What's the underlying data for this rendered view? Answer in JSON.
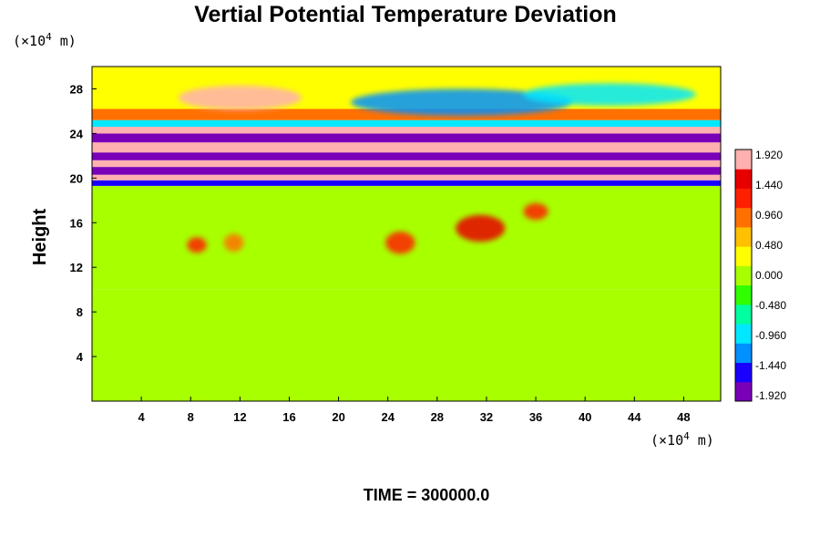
{
  "chart_data": {
    "type": "heatmap",
    "title": "Vertial Potential Temperature Deviation",
    "ylabel": "Height",
    "x_unit": {
      "prefix": "(×10",
      "exp": "4",
      "suffix": " m)"
    },
    "y_unit": {
      "prefix": "(×10",
      "exp": "4",
      "suffix": " m)"
    },
    "xlim": [
      0,
      51
    ],
    "ylim": [
      0,
      30
    ],
    "x_ticks": [
      4,
      8,
      12,
      16,
      20,
      24,
      28,
      32,
      36,
      40,
      44,
      48
    ],
    "y_ticks": [
      4,
      8,
      12,
      16,
      20,
      24,
      28
    ],
    "colorbar": {
      "vmin": -1.92,
      "vmax": 1.92,
      "labels": [
        "1.920",
        "1.440",
        "0.960",
        "0.480",
        "0.000",
        "-0.480",
        "-0.960",
        "-1.440",
        "-1.920"
      ],
      "colors": [
        "#7a00b8",
        "#1a00ff",
        "#0090ff",
        "#00e8ff",
        "#00ffa0",
        "#30ff00",
        "#a8ff00",
        "#ffff00",
        "#ffc000",
        "#ff7000",
        "#ff2000",
        "#e80000",
        "#ffb0b0"
      ]
    },
    "bands": [
      {
        "y_bottom": 0,
        "y_top": 10,
        "value": 0.0
      },
      {
        "y_bottom": 10,
        "y_top": 19.3,
        "value": 0.1
      },
      {
        "y_bottom": 19.3,
        "y_top": 19.8,
        "value": -1.6
      },
      {
        "y_bottom": 19.8,
        "y_top": 20.3,
        "value": 1.92
      },
      {
        "y_bottom": 20.3,
        "y_top": 21.0,
        "value": -1.92
      },
      {
        "y_bottom": 21.0,
        "y_top": 21.6,
        "value": 1.92
      },
      {
        "y_bottom": 21.6,
        "y_top": 22.3,
        "value": -1.92
      },
      {
        "y_bottom": 22.3,
        "y_top": 23.2,
        "value": 1.92
      },
      {
        "y_bottom": 23.2,
        "y_top": 24.0,
        "value": -1.92
      },
      {
        "y_bottom": 24.0,
        "y_top": 24.6,
        "value": 1.92
      },
      {
        "y_bottom": 24.6,
        "y_top": 25.2,
        "value": -1.0
      },
      {
        "y_bottom": 25.2,
        "y_top": 26.2,
        "value": 0.8
      },
      {
        "y_bottom": 26.2,
        "y_top": 30,
        "value": 0.2
      }
    ],
    "features": [
      {
        "x_center": 12,
        "y_center": 27.2,
        "x_width": 10,
        "y_height": 2.2,
        "value": 1.92
      },
      {
        "x_center": 30,
        "y_center": 26.8,
        "x_width": 18,
        "y_height": 2.4,
        "value": -1.4
      },
      {
        "x_center": 42,
        "y_center": 27.5,
        "x_width": 14,
        "y_height": 2.0,
        "value": -0.9
      },
      {
        "x_center": 8.5,
        "y_center": 14,
        "x_width": 1.6,
        "y_height": 1.4,
        "value": 1.2
      },
      {
        "x_center": 11.5,
        "y_center": 14.2,
        "x_width": 1.6,
        "y_height": 1.6,
        "value": 1.0
      },
      {
        "x_center": 25,
        "y_center": 14.2,
        "x_width": 2.4,
        "y_height": 2.0,
        "value": 1.4
      },
      {
        "x_center": 31.5,
        "y_center": 15.5,
        "x_width": 4,
        "y_height": 2.4,
        "value": 1.6
      },
      {
        "x_center": 36,
        "y_center": 17,
        "x_width": 2,
        "y_height": 1.5,
        "value": 1.2
      }
    ],
    "annotation": {
      "prefix": "TIME = ",
      "value": "300000.0"
    }
  }
}
